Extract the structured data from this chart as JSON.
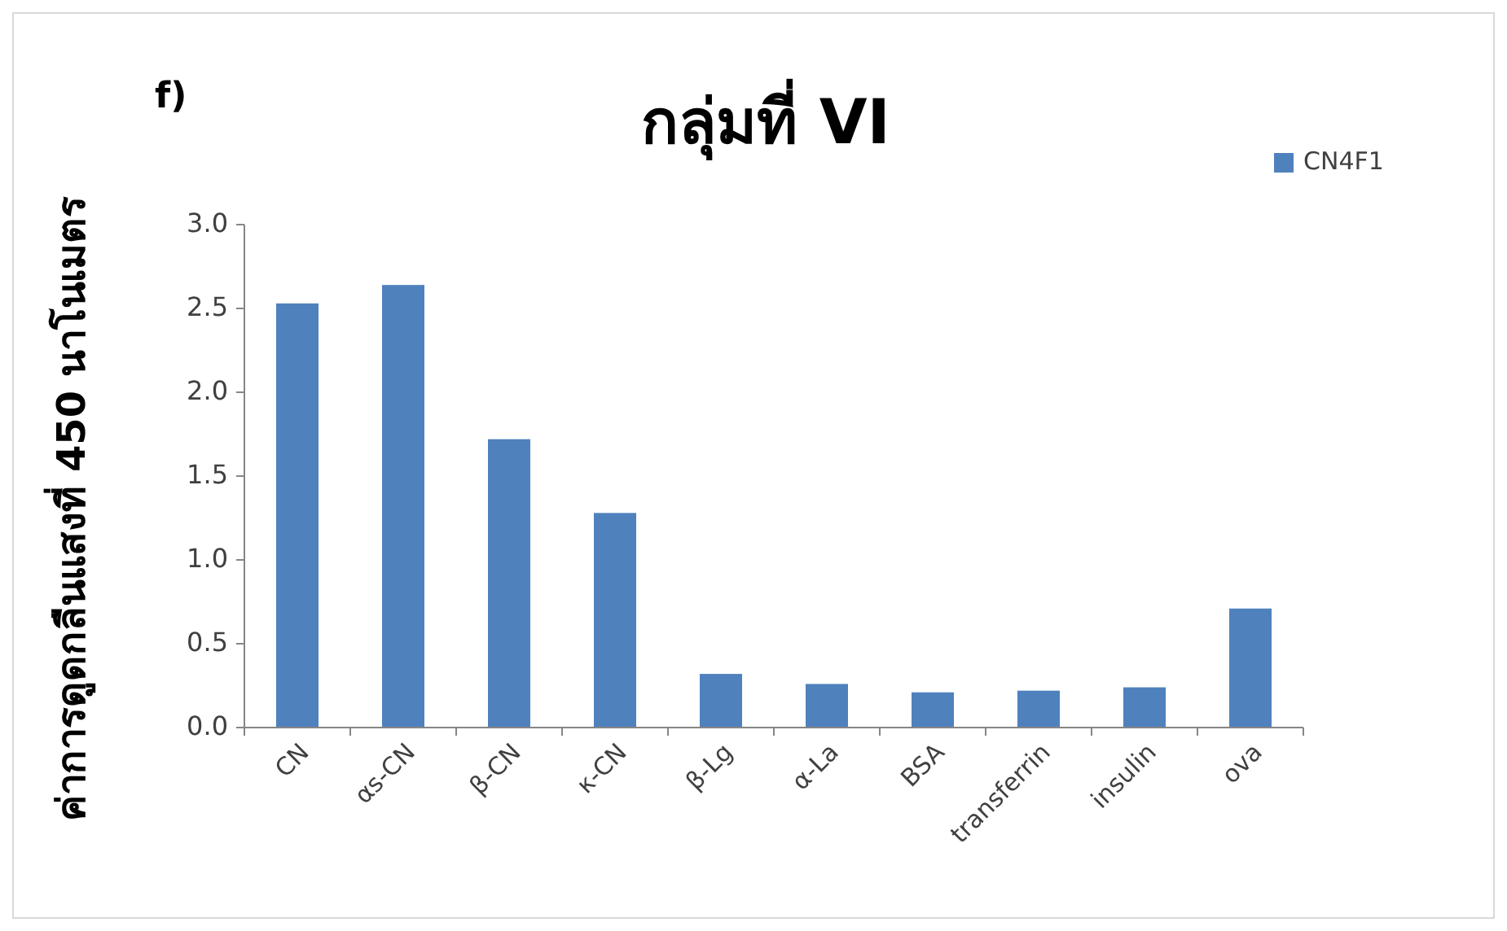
{
  "chart_data": {
    "type": "bar",
    "title": "กลุ่มที่ VI",
    "ylabel": "ค่าการดูดกลืนแสงที่ 450 นาโนเมตร",
    "annotations": [
      "f)"
    ],
    "categories": [
      "CN",
      "αs-CN",
      "β-CN",
      "κ-CN",
      "β-Lg",
      "α-La",
      "BSA",
      "transferrin",
      "insulin",
      "ova"
    ],
    "series": [
      {
        "name": "CN4F1",
        "color": "#4f81bd",
        "values": [
          2.53,
          2.64,
          1.72,
          1.28,
          0.32,
          0.26,
          0.21,
          0.22,
          0.24,
          0.71
        ]
      }
    ],
    "ylim": [
      0,
      3
    ],
    "yticks": [
      {
        "value": 0,
        "label": "0.0"
      },
      {
        "value": 0.5,
        "label": "0.5"
      },
      {
        "value": 1,
        "label": "1.0"
      },
      {
        "value": 1.5,
        "label": "1.5"
      },
      {
        "value": 2,
        "label": "2.0"
      },
      {
        "value": 2.5,
        "label": "2.5"
      },
      {
        "value": 3,
        "label": "3.0"
      }
    ],
    "grid": false,
    "legend": "top right"
  }
}
